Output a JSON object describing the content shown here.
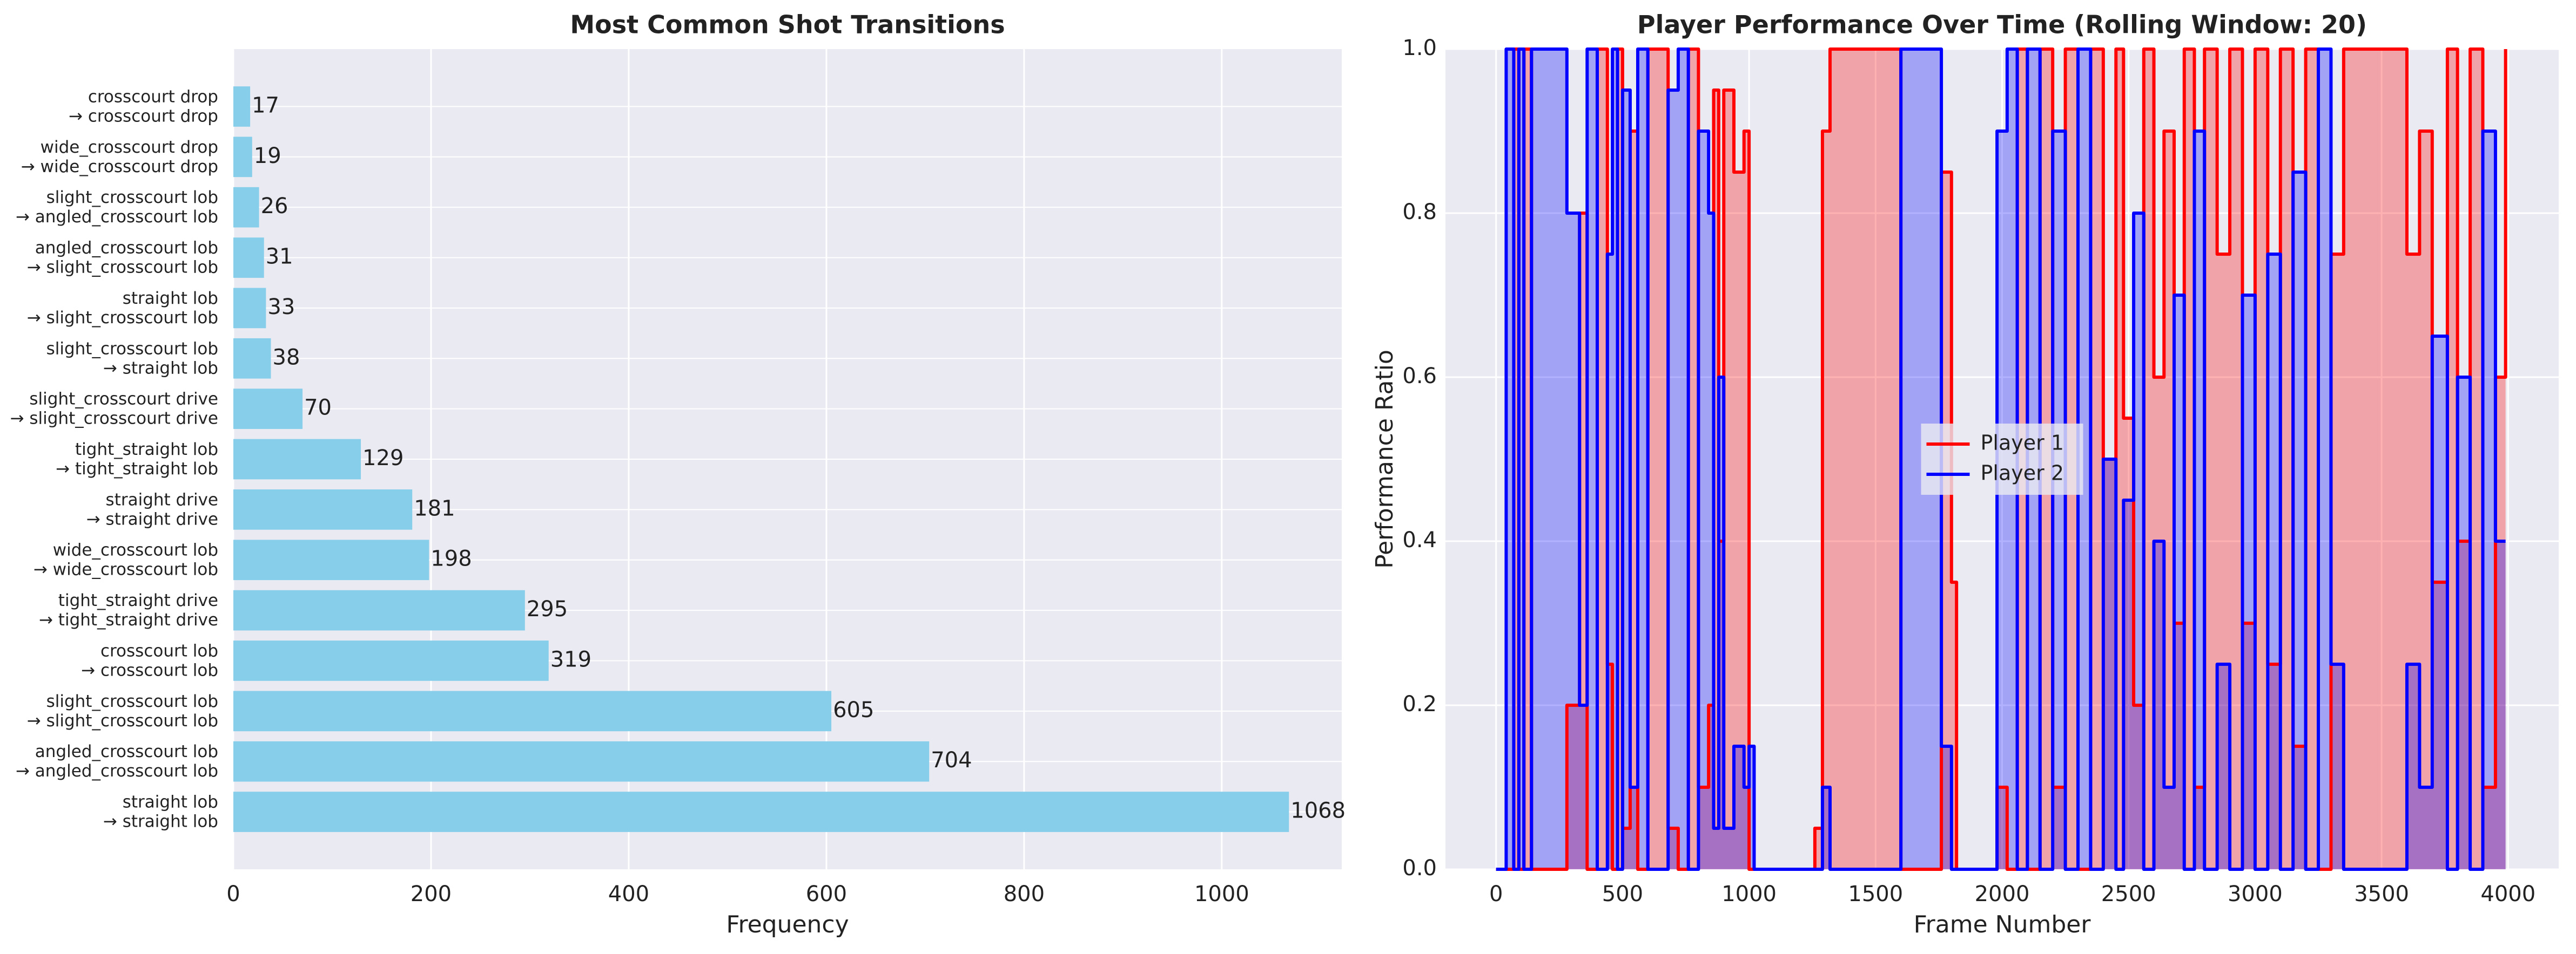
{
  "chart_data": [
    {
      "type": "barh",
      "title": "Most Common Shot Transitions",
      "xlabel": "Frequency",
      "categories": [
        [
          "straight lob",
          "→ straight lob"
        ],
        [
          "angled_crosscourt lob",
          "→ angled_crosscourt lob"
        ],
        [
          "slight_crosscourt lob",
          "→ slight_crosscourt lob"
        ],
        [
          "crosscourt lob",
          "→ crosscourt lob"
        ],
        [
          "tight_straight drive",
          "→ tight_straight drive"
        ],
        [
          "wide_crosscourt lob",
          "→ wide_crosscourt lob"
        ],
        [
          "straight drive",
          "→ straight drive"
        ],
        [
          "tight_straight lob",
          "→ tight_straight lob"
        ],
        [
          "slight_crosscourt drive",
          "→ slight_crosscourt drive"
        ],
        [
          "slight_crosscourt lob",
          "→ straight lob"
        ],
        [
          "straight lob",
          "→ slight_crosscourt lob"
        ],
        [
          "angled_crosscourt lob",
          "→ slight_crosscourt lob"
        ],
        [
          "slight_crosscourt lob",
          "→ angled_crosscourt lob"
        ],
        [
          "wide_crosscourt drop",
          "→ wide_crosscourt drop"
        ],
        [
          "crosscourt drop",
          "→ crosscourt drop"
        ]
      ],
      "values": [
        1068,
        704,
        605,
        319,
        295,
        198,
        181,
        129,
        70,
        38,
        33,
        31,
        26,
        19,
        17
      ],
      "color": "#87ceeb",
      "xlim": [
        0,
        1121.4
      ],
      "xticks": [
        0,
        200,
        400,
        600,
        800,
        1000
      ],
      "grid": true
    },
    {
      "type": "step",
      "title": "Player Performance Over Time (Rolling Window: 20)",
      "xlabel": "Frame Number",
      "ylabel": "Performance Ratio",
      "x": [
        0,
        40,
        70,
        90,
        110,
        140,
        280,
        330,
        360,
        400,
        440,
        460,
        480,
        500,
        530,
        560,
        600,
        680,
        720,
        760,
        800,
        840,
        860,
        880,
        900,
        940,
        980,
        1000,
        1020,
        1260,
        1290,
        1320,
        1600,
        1760,
        1800,
        1820,
        1980,
        2020,
        2060,
        2100,
        2150,
        2200,
        2250,
        2300,
        2350,
        2400,
        2450,
        2480,
        2520,
        2560,
        2600,
        2640,
        2680,
        2720,
        2760,
        2800,
        2850,
        2900,
        2950,
        3000,
        3050,
        3100,
        3150,
        3200,
        3250,
        3300,
        3350,
        3600,
        3650,
        3700,
        3760,
        3800,
        3850,
        3900,
        3950,
        3990
      ],
      "series": [
        {
          "name": "Player 1",
          "color": "#ff0000",
          "values": [
            0,
            0,
            1,
            0,
            1,
            0,
            0.2,
            0.8,
            0,
            1,
            0.25,
            0,
            1,
            0.05,
            0.9,
            0,
            1,
            0.05,
            0,
            1,
            0.1,
            0.2,
            0.95,
            0.4,
            0.95,
            0.85,
            0.9,
            0,
            0,
            0.05,
            0.9,
            1,
            0,
            0.85,
            0.35,
            0,
            0.1,
            0,
            1,
            0,
            1,
            0.1,
            1,
            0,
            1,
            0.5,
            1,
            0.55,
            0.2,
            1,
            0.6,
            0.9,
            0.3,
            1,
            0.1,
            1,
            0.75,
            1,
            0.3,
            1,
            0.25,
            1,
            0.15,
            1,
            0,
            0.75,
            1,
            0.75,
            0.9,
            0.35,
            1,
            0.4,
            1,
            0.1,
            0.6,
            1
          ]
        },
        {
          "name": "Player 2",
          "color": "#0000ff",
          "values": [
            0,
            1,
            0,
            1,
            0,
            1,
            0.8,
            0.2,
            1,
            0,
            0.75,
            1,
            0,
            0.95,
            0.1,
            1,
            0,
            0.95,
            1,
            0,
            0.9,
            0.8,
            0.05,
            0.6,
            0.05,
            0.15,
            0.1,
            0.15,
            0,
            0,
            0.1,
            0,
            1,
            0.15,
            0,
            0,
            0.9,
            1,
            0,
            1,
            0,
            0.9,
            0,
            1,
            0,
            0.5,
            0,
            0.45,
            0.8,
            0,
            0.4,
            0.1,
            0.7,
            0,
            0.9,
            0,
            0.25,
            0,
            0.7,
            0,
            0.75,
            0,
            0.85,
            0,
            1,
            0.25,
            0,
            0.25,
            0.1,
            0.65,
            0,
            0.6,
            0,
            0.9,
            0.4,
            0.4
          ]
        }
      ],
      "xlim": [
        -200,
        4200
      ],
      "ylim": [
        0,
        1
      ],
      "xticks": [
        0,
        500,
        1000,
        1500,
        2000,
        2500,
        3000,
        3500,
        4000
      ],
      "yticks": [
        {
          "value": 0,
          "label": "0.0"
        },
        {
          "value": 0.2,
          "label": "0.2"
        },
        {
          "value": 0.4,
          "label": "0.4"
        },
        {
          "value": 0.6,
          "label": "0.6"
        },
        {
          "value": 0.8,
          "label": "0.8"
        },
        {
          "value": 1,
          "label": "1.0"
        }
      ],
      "legend": "center",
      "grid": true
    }
  ]
}
